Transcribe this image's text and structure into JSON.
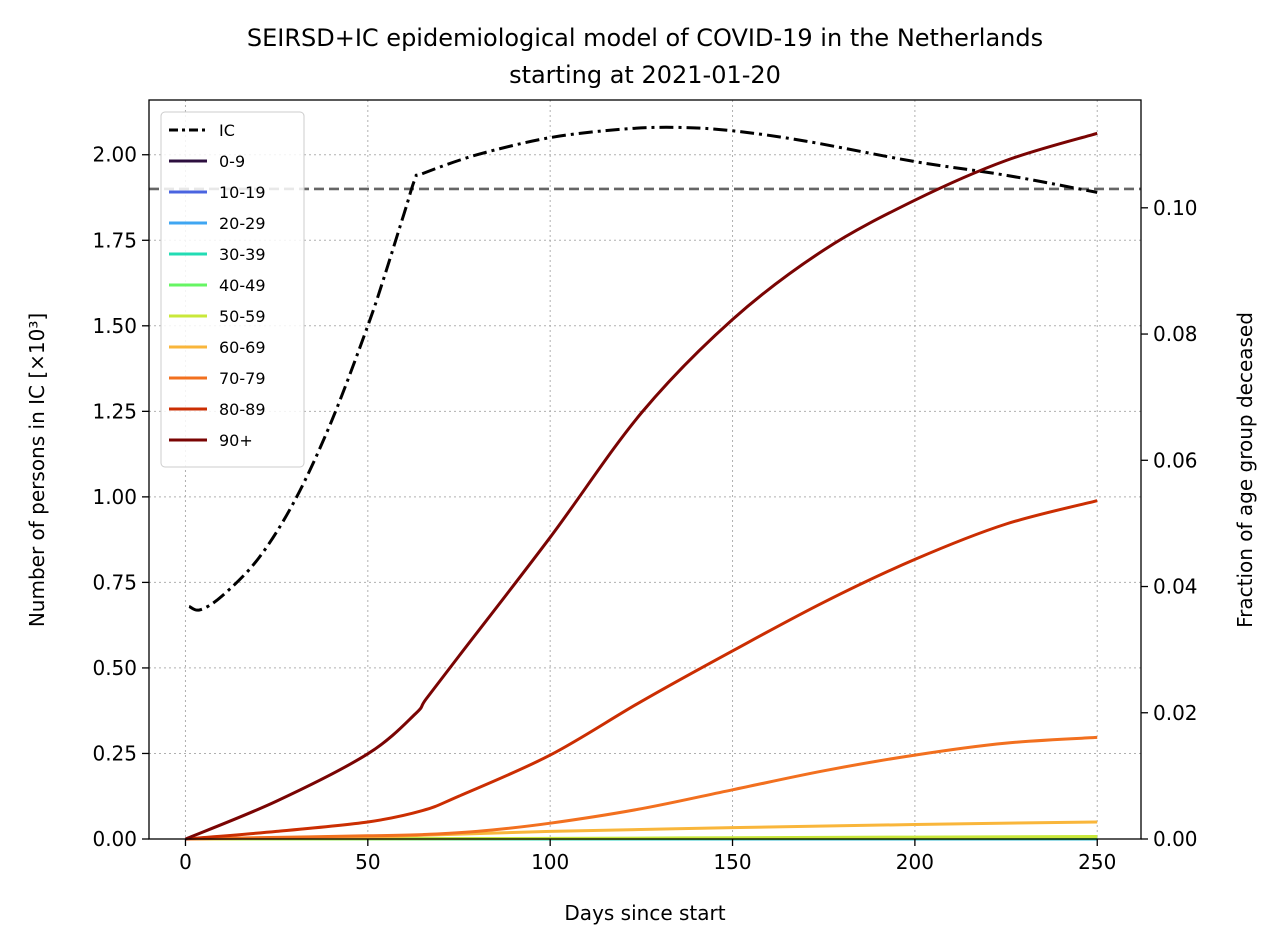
{
  "chart_data": {
    "type": "line",
    "title": "SEIRSD+IC epidemiological model of COVID-19 in the Netherlands",
    "subtitle": "starting at 2021-01-20",
    "xlabel": "Days since start",
    "ylabel_left": "Number of persons in IC [×10³]",
    "ylabel_right": "Fraction of age group deceased",
    "xlim": [
      -10,
      262
    ],
    "ylim_left": [
      0,
      2.16
    ],
    "ylim_right": [
      0,
      0.11708
    ],
    "x_ticks": [
      0,
      50,
      100,
      150,
      200,
      250
    ],
    "y_left_ticks": [
      "0.00",
      "0.25",
      "0.50",
      "0.75",
      "1.00",
      "1.25",
      "1.50",
      "1.75",
      "2.00"
    ],
    "y_right_ticks": [
      "0.00",
      "0.02",
      "0.04",
      "0.06",
      "0.08",
      "0.10"
    ],
    "grid": true,
    "legend_position": "upper-left",
    "ic_capacity_level": 1.9,
    "series": [
      {
        "name": "IC",
        "axis": "left",
        "color": "#000000",
        "style": "dashdot",
        "x": [
          1,
          4,
          10,
          20,
          30,
          40,
          50,
          55,
          60,
          63,
          65,
          80,
          100,
          120,
          135,
          150,
          170,
          200,
          225,
          250
        ],
        "values": [
          0.68,
          0.67,
          0.71,
          0.82,
          0.99,
          1.22,
          1.5,
          1.66,
          1.83,
          1.93,
          1.945,
          2.0,
          2.05,
          2.075,
          2.08,
          2.07,
          2.04,
          1.98,
          1.94,
          1.89
        ]
      },
      {
        "name": "0-9",
        "axis": "right",
        "color": "#2d0f3f",
        "style": "solid",
        "x": [
          0,
          250
        ],
        "values": [
          0,
          1e-05
        ]
      },
      {
        "name": "10-19",
        "axis": "right",
        "color": "#4a64e0",
        "style": "solid",
        "x": [
          0,
          250
        ],
        "values": [
          0,
          1e-05
        ]
      },
      {
        "name": "20-29",
        "axis": "right",
        "color": "#3fa6f2",
        "style": "solid",
        "x": [
          0,
          250
        ],
        "values": [
          0,
          2e-05
        ]
      },
      {
        "name": "30-39",
        "axis": "right",
        "color": "#22dcb4",
        "style": "solid",
        "x": [
          0,
          250
        ],
        "values": [
          0,
          5e-05
        ]
      },
      {
        "name": "40-49",
        "axis": "right",
        "color": "#66f563",
        "style": "solid",
        "x": [
          0,
          250
        ],
        "values": [
          0,
          0.00015
        ]
      },
      {
        "name": "50-59",
        "axis": "right",
        "color": "#c9e83a",
        "style": "solid",
        "x": [
          0,
          100,
          150,
          200,
          250
        ],
        "values": [
          0,
          0.0001,
          0.0002,
          0.0003,
          0.0004
        ]
      },
      {
        "name": "60-69",
        "axis": "right",
        "color": "#f9b63b",
        "style": "solid",
        "x": [
          0,
          50,
          65,
          100,
          150,
          200,
          250
        ],
        "values": [
          0,
          0.0003,
          0.0006,
          0.0012,
          0.0018,
          0.0023,
          0.0027
        ]
      },
      {
        "name": "70-79",
        "axis": "right",
        "color": "#f2701f",
        "style": "solid",
        "x": [
          0,
          25,
          50,
          65,
          80,
          100,
          125,
          150,
          175,
          200,
          225,
          250
        ],
        "values": [
          0,
          0.00025,
          0.0005,
          0.0007,
          0.0012,
          0.0025,
          0.0048,
          0.0078,
          0.0108,
          0.0133,
          0.0152,
          0.0161
        ]
      },
      {
        "name": "80-89",
        "axis": "right",
        "color": "#cb2e02",
        "style": "solid",
        "x": [
          0,
          25,
          50,
          65,
          75,
          100,
          125,
          150,
          175,
          200,
          225,
          250
        ],
        "values": [
          0,
          0.0012,
          0.0027,
          0.0045,
          0.0068,
          0.0133,
          0.0218,
          0.0298,
          0.0375,
          0.0443,
          0.0499,
          0.0536
        ]
      },
      {
        "name": "90+",
        "axis": "right",
        "color": "#7a0403",
        "style": "solid",
        "x": [
          0,
          25,
          50,
          63,
          66,
          75,
          100,
          125,
          150,
          175,
          200,
          225,
          250
        ],
        "values": [
          0,
          0.006,
          0.0135,
          0.0198,
          0.0222,
          0.029,
          0.0478,
          0.0675,
          0.0823,
          0.0933,
          0.1012,
          0.1075,
          0.1118
        ]
      }
    ]
  }
}
